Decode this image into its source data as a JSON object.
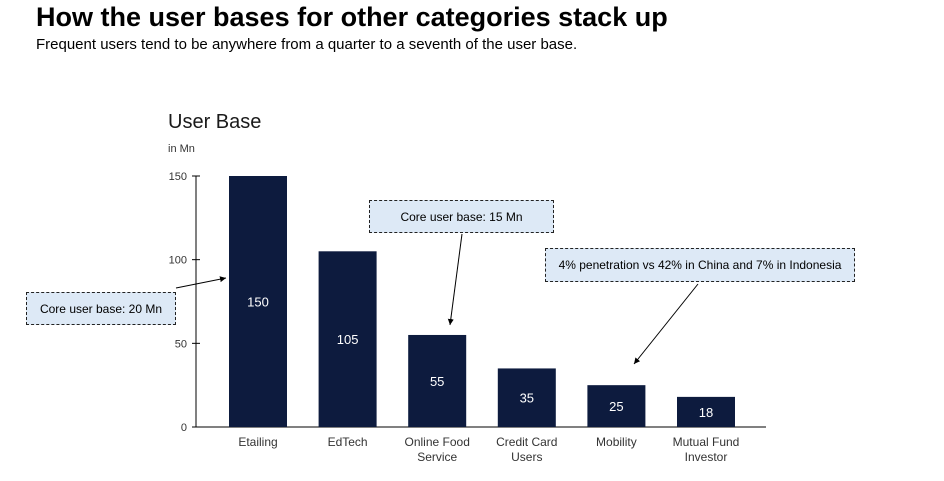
{
  "page": {
    "title": "How the user bases for other categories stack up",
    "subtitle": "Frequent users tend to be anywhere from a quarter to a seventh of the user base."
  },
  "chart_data": {
    "type": "bar",
    "title": "User Base",
    "unit_label": "in Mn",
    "categories": [
      [
        "Etailing"
      ],
      [
        "EdTech"
      ],
      [
        "Online Food",
        "Service"
      ],
      [
        "Credit Card",
        "Users"
      ],
      [
        "Mobility"
      ],
      [
        "Mutual Fund",
        "Investor"
      ]
    ],
    "values": [
      150,
      105,
      55,
      35,
      25,
      18
    ],
    "data_labels": [
      "150",
      "105",
      "55",
      "35",
      "25",
      "18"
    ],
    "ylim": [
      0,
      150
    ],
    "yticks": [
      0,
      50,
      100,
      150
    ],
    "grid": false,
    "bar_color": "#0d1b3e",
    "label_color": "#ffffff"
  },
  "callouts": {
    "left": "Core user base: 20 Mn",
    "center": "Core user base: 15 Mn",
    "right": "4% penetration vs 42% in China and 7% in Indonesia"
  },
  "colors": {
    "callout_fill": "#dde9f6",
    "axis": "#000000"
  }
}
